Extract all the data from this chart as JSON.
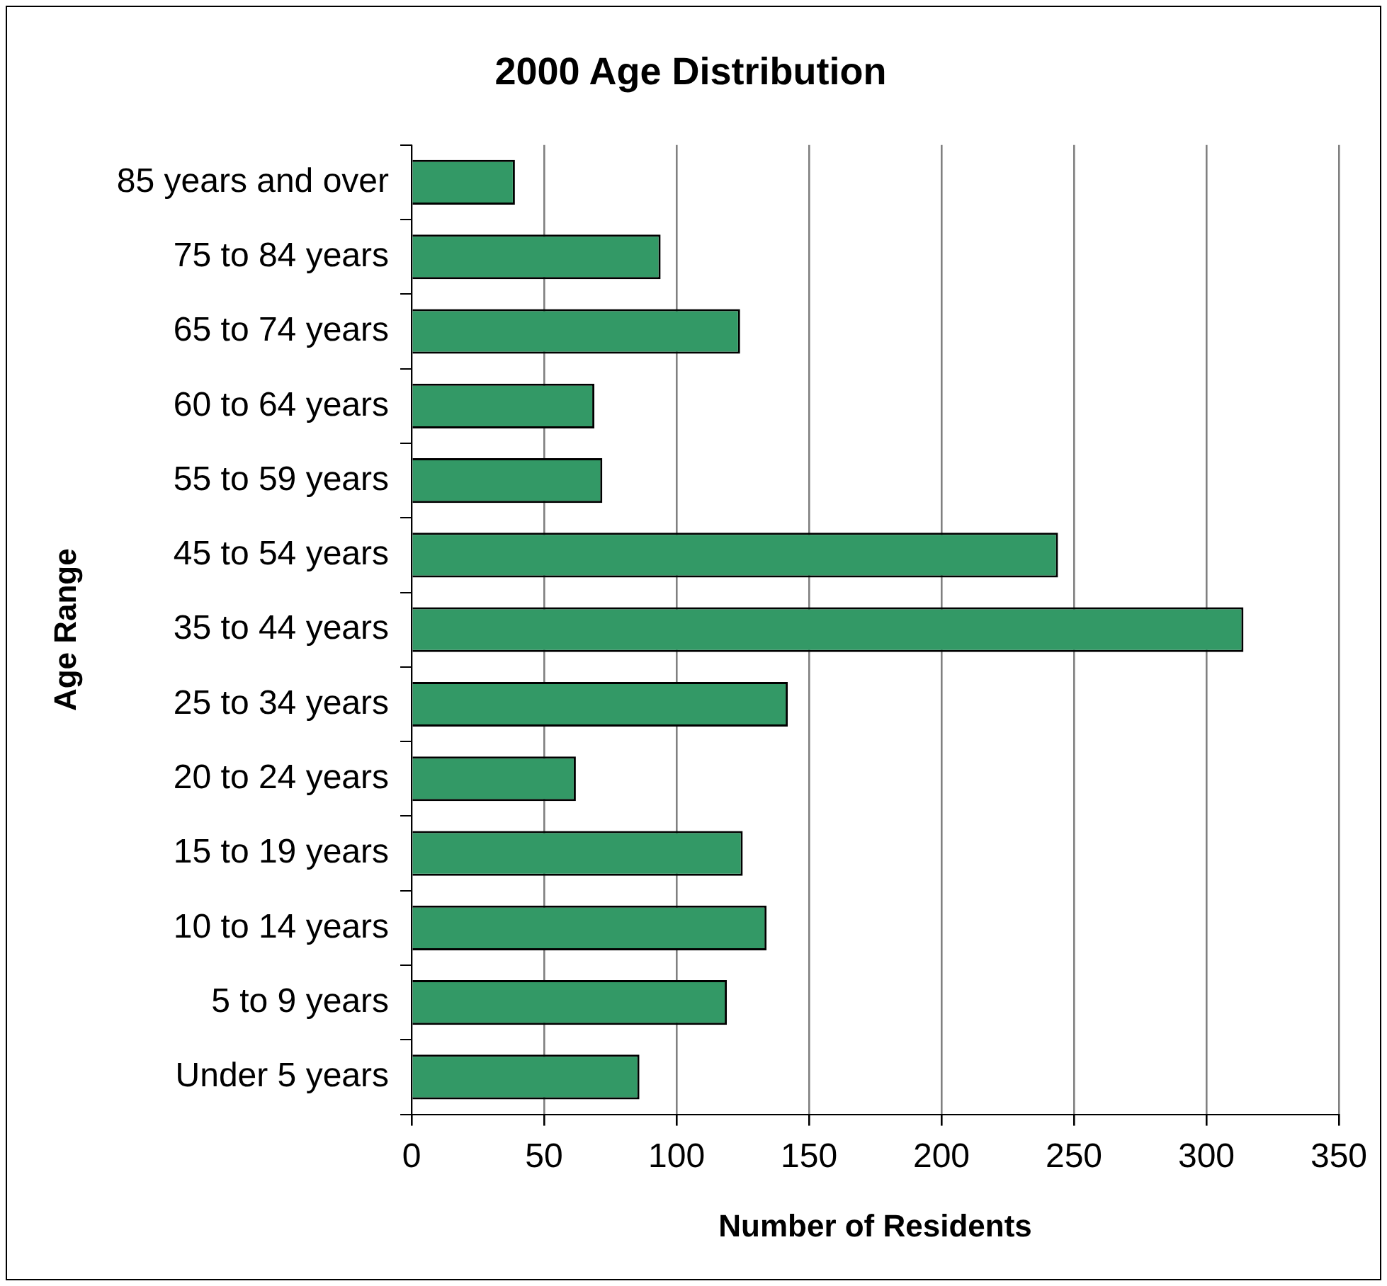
{
  "chart_data": {
    "type": "bar",
    "orientation": "horizontal",
    "title": "2000 Age Distribution",
    "xlabel": "Number of Residents",
    "ylabel": "Age Range",
    "categories": [
      "85 years and over",
      "75 to 84 years",
      "65 to 74 years",
      "60 to 64 years",
      "55 to 59 years",
      "45 to 54 years",
      "35 to 44 years",
      "25 to 34 years",
      "20 to 24 years",
      "15 to 19 years",
      "10 to 14 years",
      "5 to 9 years",
      "Under 5 years"
    ],
    "values": [
      39,
      94,
      124,
      69,
      72,
      244,
      314,
      142,
      62,
      125,
      134,
      119,
      86
    ],
    "color": "#339966",
    "xlim": [
      0,
      350
    ],
    "xticks": [
      0,
      50,
      100,
      150,
      200,
      250,
      300,
      350
    ],
    "grid": "x",
    "legend": false
  }
}
